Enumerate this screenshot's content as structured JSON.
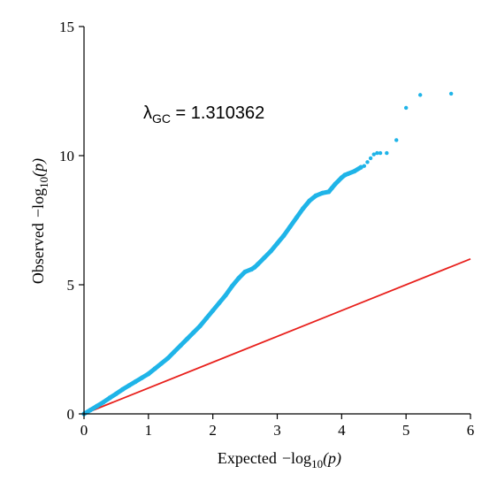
{
  "chart_data": {
    "type": "scatter",
    "title": "",
    "xlabel": {
      "prefix": "Expected",
      "minus": "−",
      "func": "log",
      "sub": "10",
      "arg": "(p)"
    },
    "ylabel": {
      "prefix": "Observed",
      "minus": "−",
      "func": "log",
      "sub": "10",
      "arg": "(p)"
    },
    "xlim": [
      0,
      6
    ],
    "ylim": [
      0,
      15
    ],
    "x_ticks": [
      "0",
      "1",
      "2",
      "3",
      "4",
      "5",
      "6"
    ],
    "y_ticks": [
      "0",
      "5",
      "10",
      "15"
    ],
    "grid": false,
    "annotation": {
      "symbol": "λ",
      "sub": "GC",
      "text": " = 1.310362"
    },
    "colors": {
      "points": "#1fb4e8",
      "reference_line": "#e8201c",
      "axes": "#000000"
    },
    "series": [
      {
        "kind": "points",
        "x": [
          0.0,
          0.1,
          0.2,
          0.3,
          0.4,
          0.5,
          0.6,
          0.7,
          0.8,
          0.9,
          1.0,
          1.1,
          1.2,
          1.3,
          1.4,
          1.5,
          1.6,
          1.7,
          1.8,
          1.9,
          2.0,
          2.1,
          2.2,
          2.3,
          2.4,
          2.5,
          2.6,
          2.65,
          2.7,
          2.8,
          2.9,
          3.0,
          3.1,
          3.2,
          3.3,
          3.4,
          3.5,
          3.6,
          3.7,
          3.8,
          3.85,
          3.9,
          4.0,
          4.05,
          4.1,
          4.2,
          4.3,
          4.35,
          4.4,
          4.45,
          4.5,
          4.55,
          4.6,
          4.7,
          4.85,
          5.0,
          5.22,
          5.7
        ],
        "y": [
          0.0,
          0.15,
          0.3,
          0.45,
          0.62,
          0.78,
          0.95,
          1.1,
          1.25,
          1.4,
          1.55,
          1.75,
          1.95,
          2.15,
          2.4,
          2.65,
          2.9,
          3.15,
          3.4,
          3.7,
          4.0,
          4.3,
          4.6,
          4.95,
          5.25,
          5.5,
          5.6,
          5.68,
          5.8,
          6.05,
          6.3,
          6.6,
          6.9,
          7.25,
          7.6,
          7.95,
          8.25,
          8.45,
          8.55,
          8.6,
          8.75,
          8.9,
          9.15,
          9.25,
          9.3,
          9.4,
          9.55,
          9.6,
          9.75,
          9.9,
          10.05,
          10.1,
          10.1,
          10.1,
          10.6,
          11.85,
          12.35,
          12.4
        ]
      },
      {
        "kind": "reference_line",
        "x": [
          0,
          6
        ],
        "y": [
          0,
          6
        ]
      }
    ]
  }
}
